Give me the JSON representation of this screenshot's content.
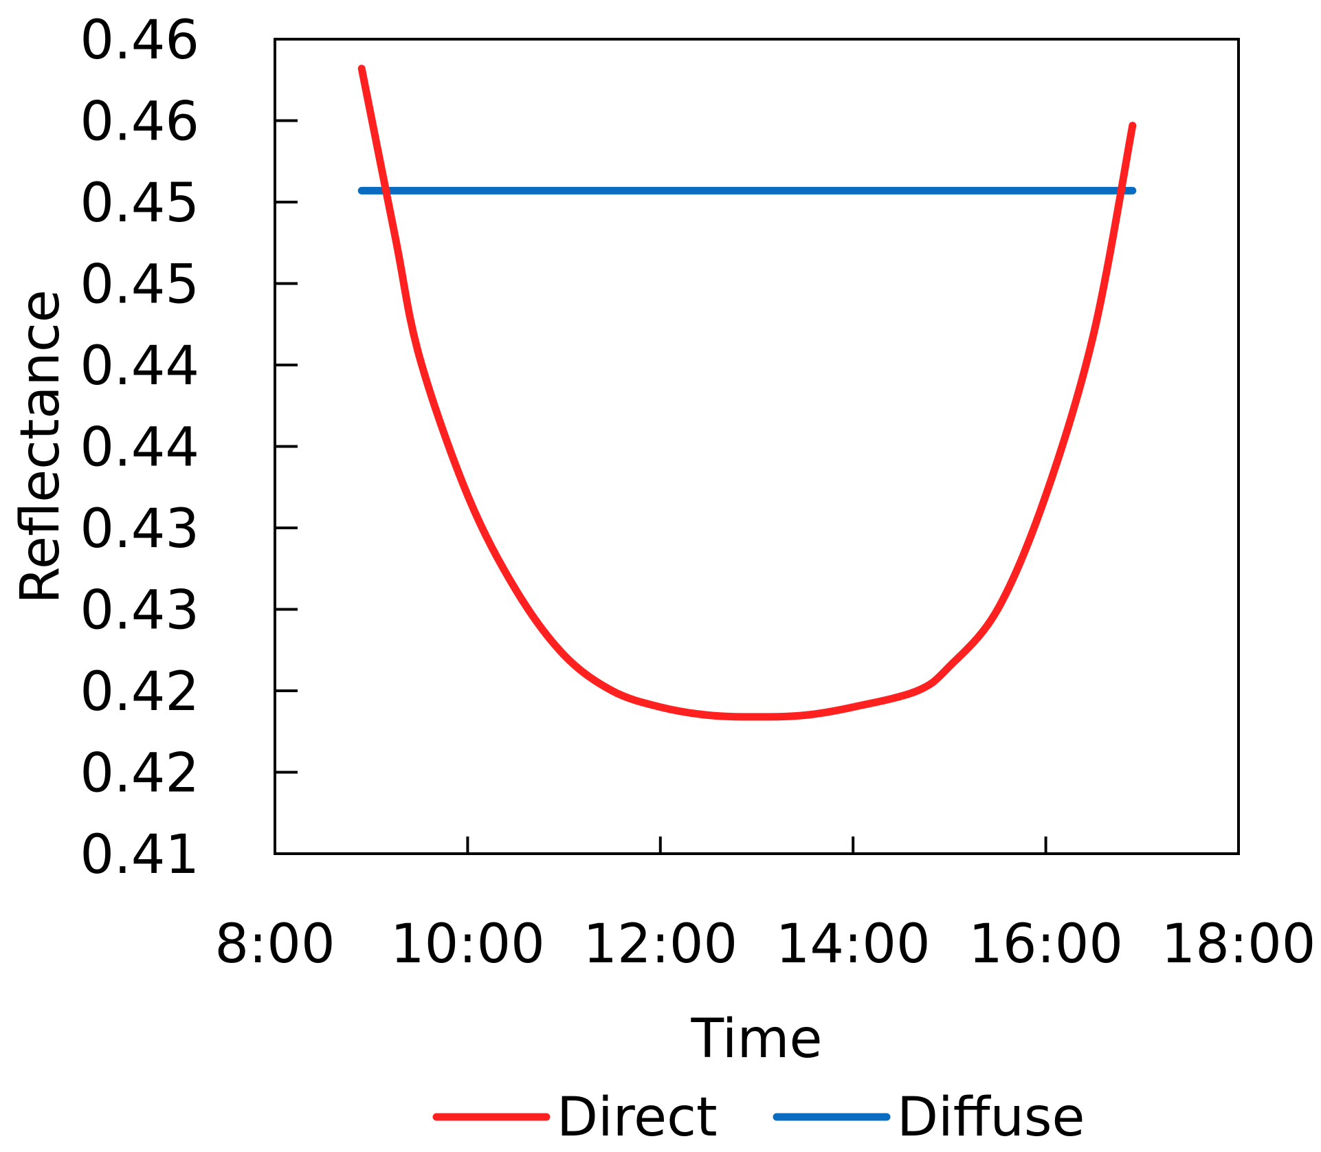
{
  "chart_data": {
    "type": "line",
    "title": "",
    "xlabel": "Time",
    "ylabel": "Reflectance",
    "x_ticks": [
      "8:00",
      "10:00",
      "12:00",
      "14:00",
      "16:00",
      "18:00"
    ],
    "xlim": [
      "8:00",
      "18:00"
    ],
    "y_ticks": [
      "0.41",
      "0.42",
      "0.42",
      "0.43",
      "0.43",
      "0.44",
      "0.44",
      "0.45",
      "0.45",
      "0.46",
      "0.46"
    ],
    "ylim": [
      0.41,
      0.46
    ],
    "grid": false,
    "legend": {
      "position": "bottom"
    },
    "series": [
      {
        "name": "Direct",
        "color": "#ff2020",
        "x": [
          "8:54",
          "9:15",
          "9:30",
          "10:00",
          "10:30",
          "11:00",
          "11:30",
          "12:00",
          "12:30",
          "13:00",
          "13:30",
          "14:00",
          "14:40",
          "15:00",
          "15:30",
          "16:00",
          "16:30",
          "16:54"
        ],
        "y": [
          0.4582,
          0.4478,
          0.4405,
          0.432,
          0.4262,
          0.4222,
          0.42,
          0.419,
          0.4185,
          0.4184,
          0.4185,
          0.419,
          0.42,
          0.4215,
          0.425,
          0.432,
          0.442,
          0.4547
        ]
      },
      {
        "name": "Diffuse",
        "color": "#0a6cc0",
        "x": [
          "8:54",
          "16:54"
        ],
        "y": [
          0.4507,
          0.4507
        ]
      }
    ]
  }
}
